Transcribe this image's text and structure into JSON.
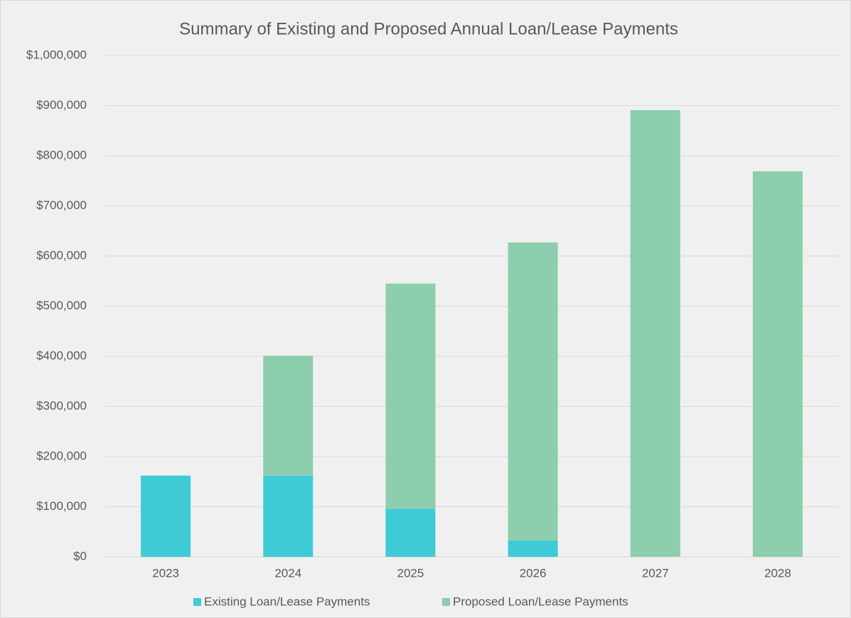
{
  "chart_data": {
    "type": "stacked_bar",
    "title": "Summary of Existing and Proposed Annual Loan/Lease Payments",
    "categories": [
      "2023",
      "2024",
      "2025",
      "2026",
      "2027",
      "2028"
    ],
    "series": [
      {
        "name": "Existing Loan/Lease Payments",
        "color": "#3ecbd6",
        "values": [
          162000,
          162000,
          96000,
          33000,
          0,
          0
        ]
      },
      {
        "name": "Proposed Loan/Lease Payments",
        "color": "#8ccead",
        "values": [
          0,
          239000,
          449000,
          594000,
          891000,
          769000
        ]
      }
    ],
    "ylim": [
      0,
      1000000
    ],
    "yticks": [
      {
        "value": 0,
        "label": "$0"
      },
      {
        "value": 100000,
        "label": "$100,000"
      },
      {
        "value": 200000,
        "label": "$200,000"
      },
      {
        "value": 300000,
        "label": "$300,000"
      },
      {
        "value": 400000,
        "label": "$400,000"
      },
      {
        "value": 500000,
        "label": "$500,000"
      },
      {
        "value": 600000,
        "label": "$600,000"
      },
      {
        "value": 700000,
        "label": "$700,000"
      },
      {
        "value": 800000,
        "label": "$800,000"
      },
      {
        "value": 900000,
        "label": "$900,000"
      },
      {
        "value": 1000000,
        "label": "$1,000,000"
      }
    ],
    "grid": true,
    "legend": "bottom"
  }
}
